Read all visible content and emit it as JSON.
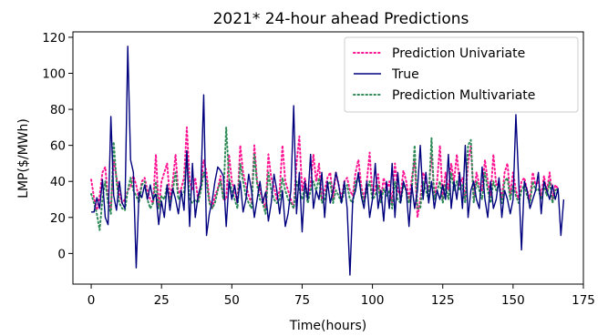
{
  "chart_data": {
    "type": "line",
    "title": "2021* 24-hour ahead Predictions",
    "xlabel": "Time(hours)",
    "ylabel": "LMP($/MWh)",
    "xlim": [
      -6.5,
      175
    ],
    "ylim": [
      -17,
      123
    ],
    "xticks": [
      0,
      25,
      50,
      75,
      100,
      125,
      150,
      175
    ],
    "yticks": [
      0,
      20,
      40,
      60,
      80,
      100,
      120
    ],
    "grid": false,
    "legend_position": "top-right",
    "series": [
      {
        "name": "Prediction Univariate",
        "color": "#ff1493",
        "style": "dotted",
        "values": [
          41,
          31,
          24,
          32,
          45,
          48,
          30,
          25,
          52,
          42,
          33,
          28,
          30,
          35,
          37,
          43,
          38,
          30,
          40,
          42,
          35,
          30,
          28,
          55,
          25,
          40,
          45,
          50,
          30,
          40,
          55,
          33,
          36,
          42,
          70,
          40,
          35,
          42,
          30,
          38,
          52,
          45,
          30,
          25,
          32,
          36,
          43,
          30,
          30,
          55,
          40,
          35,
          28,
          60,
          45,
          38,
          32,
          28,
          60,
          40,
          35,
          30,
          25,
          55,
          42,
          37,
          30,
          35,
          60,
          40,
          35,
          30,
          25,
          50,
          65,
          35,
          42,
          30,
          38,
          55,
          40,
          50,
          30,
          35,
          42,
          45,
          30,
          45,
          38,
          30,
          40,
          42,
          35,
          32,
          45,
          52,
          38,
          30,
          40,
          56,
          32,
          36,
          44,
          30,
          42,
          35,
          40,
          28,
          50,
          35,
          32,
          46,
          40,
          30,
          42,
          52,
          20,
          30,
          45,
          40,
          35,
          55,
          32,
          40,
          60,
          30,
          45,
          35,
          50,
          40,
          55,
          38,
          42,
          30,
          50,
          60,
          30,
          45,
          38,
          35,
          52,
          40,
          32,
          55,
          38,
          40,
          30,
          45,
          50,
          32,
          45,
          35,
          30,
          40,
          42,
          35,
          30,
          45,
          38,
          40,
          32,
          43,
          34,
          45,
          30,
          38,
          36
        ]
      },
      {
        "name": "True",
        "color": "#00007f",
        "style": "solid",
        "values": [
          23,
          23,
          31,
          25,
          41,
          20,
          16,
          76,
          32,
          24,
          40,
          28,
          25,
          115,
          52,
          45,
          -8,
          34,
          31,
          38,
          30,
          38,
          30,
          33,
          16,
          29,
          20,
          38,
          24,
          36,
          30,
          22,
          35,
          24,
          57,
          15,
          50,
          20,
          32,
          38,
          88,
          10,
          22,
          29,
          40,
          48,
          46,
          43,
          15,
          40,
          30,
          38,
          28,
          40,
          23,
          30,
          44,
          35,
          20,
          30,
          40,
          28,
          34,
          18,
          28,
          44,
          35,
          22,
          35,
          15,
          22,
          35,
          82,
          22,
          45,
          12,
          40,
          30,
          55,
          25,
          35,
          30,
          45,
          20,
          40,
          28,
          35,
          45,
          38,
          28,
          40,
          25,
          -12,
          30,
          35,
          45,
          32,
          25,
          40,
          20,
          30,
          50,
          25,
          35,
          18,
          40,
          25,
          50,
          20,
          45,
          28,
          40,
          35,
          15,
          38,
          25,
          35,
          60,
          30,
          45,
          28,
          40,
          25,
          35,
          30,
          38,
          30,
          55,
          25,
          40,
          30,
          45,
          25,
          60,
          20,
          35,
          40,
          30,
          25,
          48,
          30,
          20,
          40,
          25,
          30,
          42,
          20,
          35,
          30,
          22,
          30,
          77,
          40,
          2,
          40,
          35,
          25,
          30,
          35,
          45,
          22,
          40,
          35,
          30,
          38,
          30,
          36,
          10,
          30
        ]
      },
      {
        "name": "Prediction Multivariate",
        "color": "#2e8b57",
        "style": "dotted",
        "values": [
          33,
          28,
          22,
          13,
          30,
          40,
          28,
          22,
          62,
          40,
          28,
          25,
          24,
          35,
          42,
          35,
          32,
          28,
          38,
          40,
          30,
          25,
          28,
          40,
          25,
          32,
          30,
          38,
          28,
          35,
          45,
          30,
          32,
          34,
          55,
          30,
          28,
          30,
          28,
          35,
          45,
          40,
          28,
          25,
          28,
          35,
          40,
          30,
          70,
          42,
          35,
          30,
          25,
          50,
          40,
          32,
          28,
          25,
          55,
          38,
          30,
          28,
          22,
          45,
          35,
          30,
          28,
          30,
          42,
          35,
          30,
          28,
          25,
          40,
          35,
          30,
          38,
          28,
          35,
          40,
          35,
          42,
          28,
          30,
          38,
          40,
          28,
          35,
          32,
          28,
          35,
          38,
          30,
          28,
          40,
          42,
          35,
          28,
          35,
          40,
          30,
          32,
          38,
          28,
          36,
          32,
          35,
          25,
          40,
          30,
          28,
          38,
          35,
          28,
          35,
          60,
          25,
          25,
          40,
          35,
          30,
          64,
          30,
          35,
          40,
          28,
          38,
          30,
          45,
          35,
          40,
          35,
          38,
          28,
          60,
          63,
          28,
          40,
          35,
          30,
          45,
          35,
          28,
          40,
          35,
          38,
          28,
          40,
          42,
          30,
          38,
          32,
          28,
          35,
          38,
          32,
          28,
          40,
          35,
          36,
          30,
          38,
          32,
          40,
          28,
          35,
          36
        ]
      }
    ]
  }
}
